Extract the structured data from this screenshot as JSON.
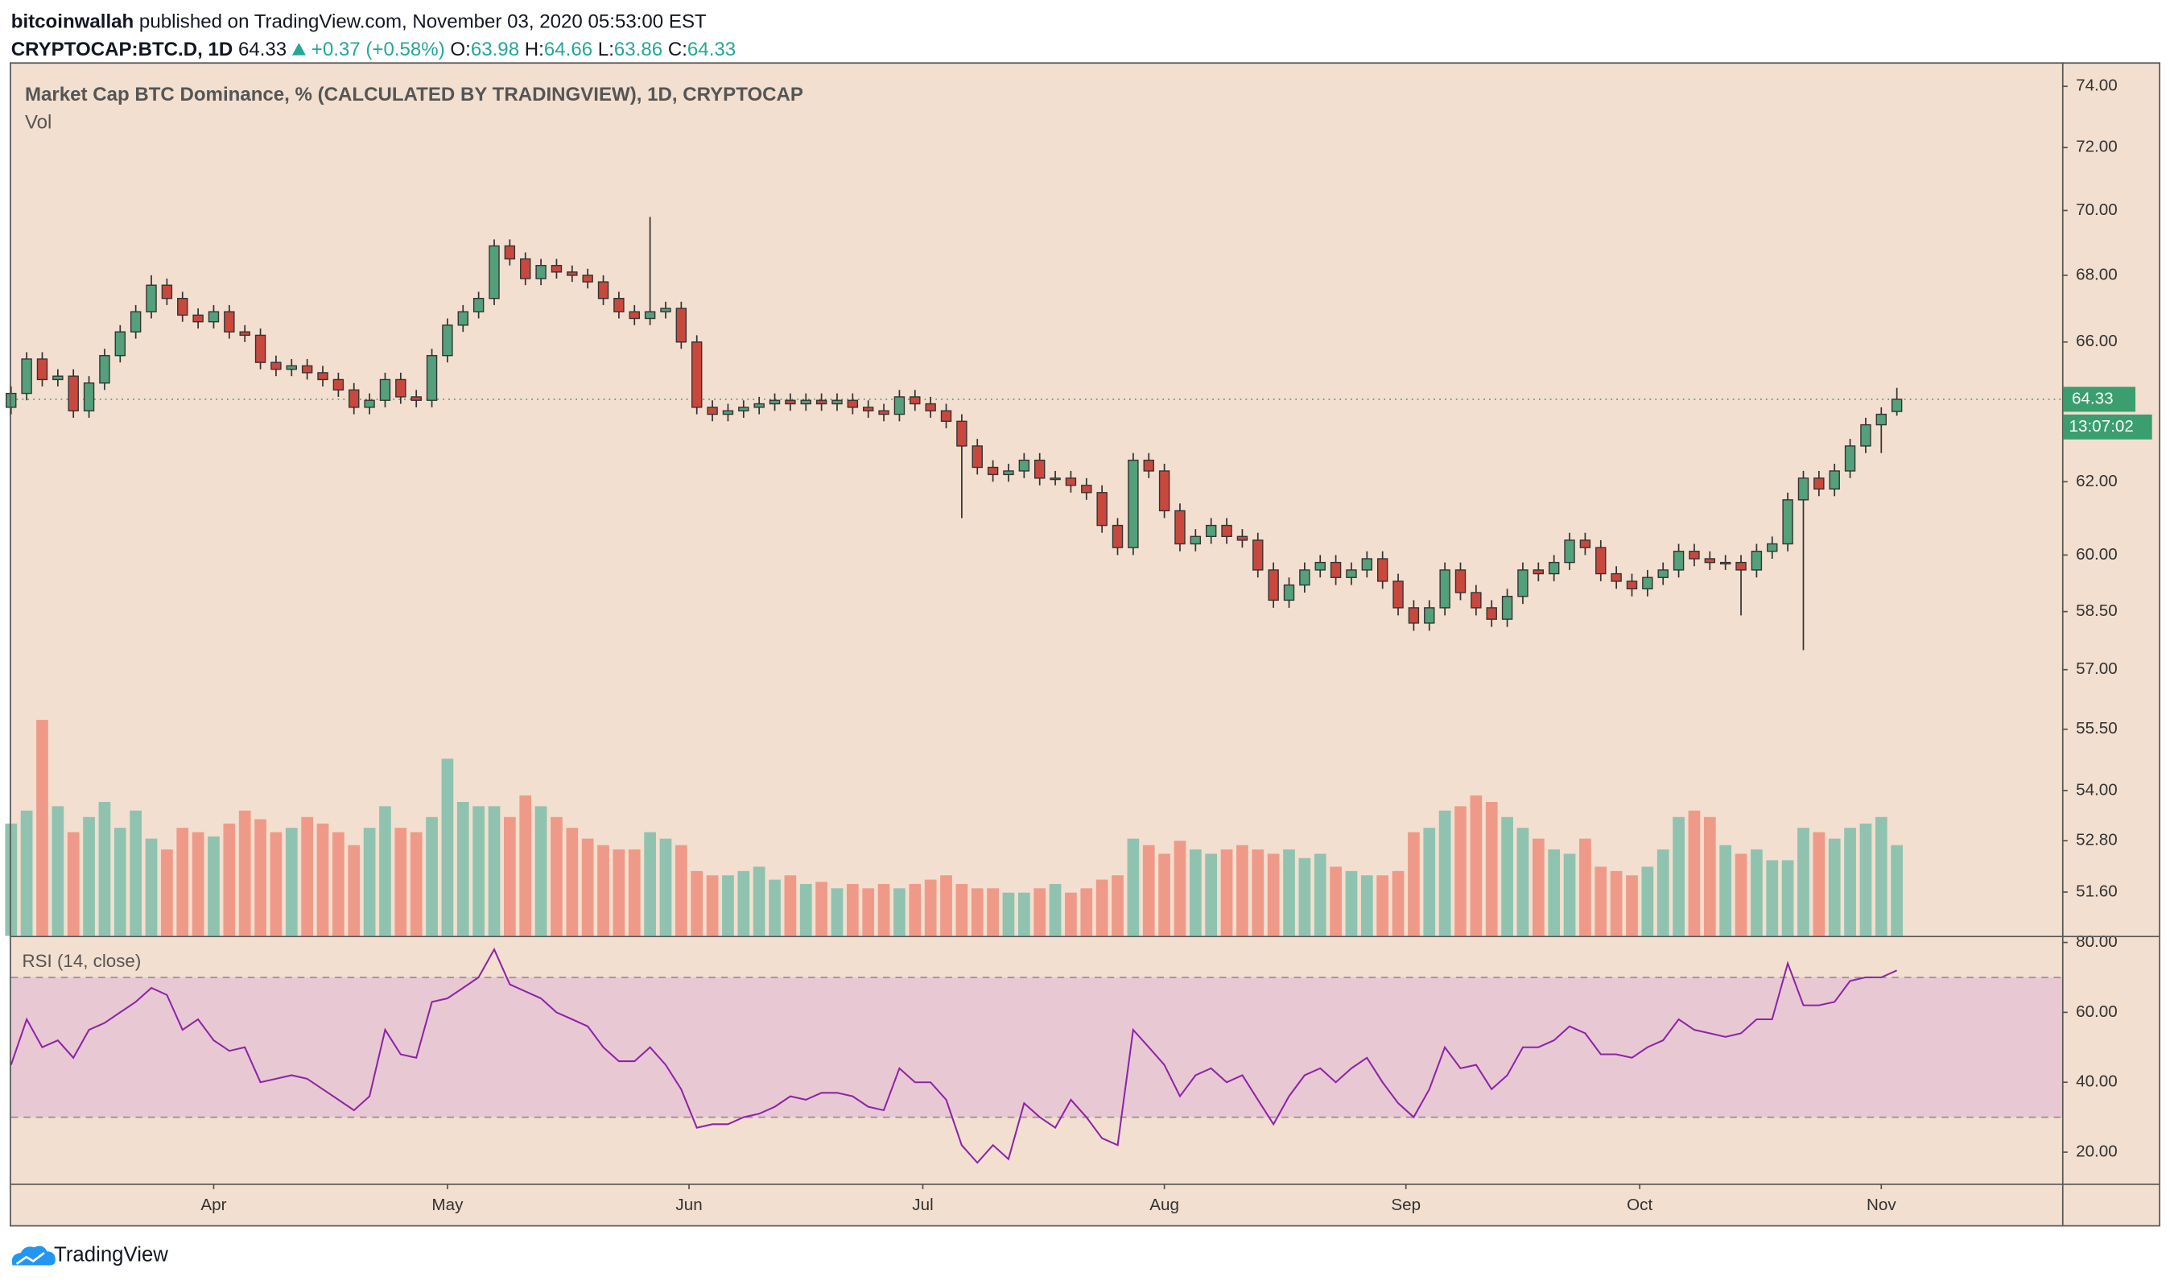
{
  "header": {
    "author": "bitcoinwallah",
    "published": "published on TradingView.com, November 03, 2020 05:53:00 EST",
    "symbol": "CRYPTOCAP:BTC.D, 1D",
    "change": "+0.37 (+0.58%)",
    "ohlc_labels": [
      "O:",
      "H:",
      "L:",
      "C:"
    ]
  },
  "footer": "TradingView",
  "chart_data": {
    "type": "candlestick",
    "title": "Market Cap BTC Dominance, % (CALCULATED BY TRADINGVIEW), 1D, CRYPTOCAP",
    "volume_title": "Vol",
    "rsi_title": "RSI (14, close)",
    "countdown": "13:07:02",
    "up_color": "#53a07a",
    "down_color": "#c9483e",
    "volume_up_color": "#8fc3b0",
    "volume_down_color": "#ef9a88",
    "rsi_color": "#8e24aa",
    "price_line_color": "#3a9e6f",
    "log_scale": true,
    "xlim": [
      0,
      131.6
    ],
    "xticks": [
      {
        "value": 13,
        "label": "Apr"
      },
      {
        "value": 28,
        "label": "May"
      },
      {
        "value": 43.5,
        "label": "Jun"
      },
      {
        "value": 58.5,
        "label": "Jul"
      },
      {
        "value": 74,
        "label": "Aug"
      },
      {
        "value": 89.5,
        "label": "Sep"
      },
      {
        "value": 104.5,
        "label": "Oct"
      },
      {
        "value": 120,
        "label": "Nov"
      }
    ],
    "ylim": [
      50.6,
      74.8
    ],
    "yticks": [
      {
        "value": 74,
        "label": "74.00"
      },
      {
        "value": 72,
        "label": "72.00"
      },
      {
        "value": 70,
        "label": "70.00"
      },
      {
        "value": 68,
        "label": "68.00"
      },
      {
        "value": 66,
        "label": "66.00"
      },
      {
        "value": 62,
        "label": "62.00"
      },
      {
        "value": 60,
        "label": "60.00"
      },
      {
        "value": 58.5,
        "label": "58.50"
      },
      {
        "value": 57,
        "label": "57.00"
      },
      {
        "value": 55.5,
        "label": "55.50"
      },
      {
        "value": 54,
        "label": "54.00"
      },
      {
        "value": 52.8,
        "label": "52.80"
      },
      {
        "value": 51.6,
        "label": "51.60"
      }
    ],
    "open": [
      64.1,
      64.5,
      65.5,
      64.9,
      65.0,
      64.0,
      64.8,
      65.6,
      66.3,
      66.9,
      67.7,
      67.3,
      66.8,
      66.6,
      66.9,
      66.3,
      66.2,
      65.4,
      65.2,
      65.3,
      65.1,
      64.9,
      64.6,
      64.1,
      64.3,
      64.9,
      64.4,
      64.3,
      65.6,
      66.5,
      66.9,
      67.3,
      68.9,
      68.5,
      67.9,
      68.3,
      68.1,
      68.0,
      67.8,
      67.3,
      66.9,
      66.7,
      66.9,
      67.0,
      66.0,
      64.1,
      63.9,
      64.0,
      64.1,
      64.2,
      64.3,
      64.2,
      64.3,
      64.2,
      64.3,
      64.1,
      64.0,
      63.9,
      64.4,
      64.2,
      64.0,
      63.7,
      63.0,
      62.4,
      62.2,
      62.3,
      62.6,
      62.1,
      62.1,
      61.9,
      61.7,
      60.8,
      60.2,
      62.6,
      62.3,
      61.2,
      60.3,
      60.5,
      60.8,
      60.5,
      60.4,
      59.6,
      58.8,
      59.2,
      59.6,
      59.8,
      59.4,
      59.6,
      59.9,
      59.3,
      58.6,
      58.2,
      58.6,
      59.6,
      59.0,
      58.6,
      58.3,
      58.9,
      59.6,
      59.5,
      59.8,
      60.4,
      60.2,
      59.5,
      59.3,
      59.1,
      59.4,
      59.6,
      60.1,
      59.9,
      59.8,
      59.8,
      59.6,
      60.1,
      60.3,
      61.5,
      62.1,
      61.8,
      62.3,
      63.0,
      63.6,
      63.98
    ],
    "high": [
      64.7,
      65.7,
      65.7,
      65.2,
      65.2,
      65.0,
      65.8,
      66.5,
      67.1,
      68.0,
      67.9,
      67.5,
      67.0,
      67.1,
      67.1,
      66.5,
      66.4,
      65.6,
      65.5,
      65.5,
      65.3,
      65.1,
      64.8,
      64.5,
      65.1,
      65.1,
      64.6,
      65.8,
      66.7,
      67.1,
      67.5,
      69.1,
      69.1,
      68.7,
      68.5,
      68.5,
      68.3,
      68.2,
      68.0,
      67.5,
      67.1,
      69.8,
      67.2,
      67.2,
      66.2,
      64.3,
      64.2,
      64.3,
      64.4,
      64.5,
      64.5,
      64.5,
      64.5,
      64.5,
      64.5,
      64.3,
      64.2,
      64.6,
      64.6,
      64.4,
      64.2,
      63.9,
      63.2,
      62.6,
      62.5,
      62.8,
      62.8,
      62.3,
      62.3,
      62.1,
      61.9,
      61.0,
      62.8,
      62.8,
      62.5,
      61.4,
      60.7,
      61.0,
      61.0,
      60.7,
      60.6,
      59.8,
      59.4,
      59.8,
      60.0,
      60.0,
      59.8,
      60.1,
      60.1,
      59.5,
      58.8,
      58.8,
      59.8,
      59.8,
      59.2,
      58.8,
      59.1,
      59.8,
      59.8,
      60.0,
      60.6,
      60.6,
      60.4,
      59.7,
      59.5,
      59.6,
      59.8,
      60.3,
      60.3,
      60.1,
      60.0,
      60.0,
      60.3,
      60.5,
      61.7,
      62.3,
      62.3,
      62.5,
      63.2,
      63.8,
      64.1,
      64.66
    ],
    "low": [
      63.9,
      64.3,
      64.7,
      64.7,
      63.8,
      63.8,
      64.6,
      65.4,
      66.1,
      66.7,
      67.1,
      66.6,
      66.4,
      66.4,
      66.1,
      66.0,
      65.2,
      65.0,
      65.0,
      64.9,
      64.7,
      64.4,
      63.9,
      63.9,
      64.1,
      64.2,
      64.1,
      64.1,
      65.4,
      66.3,
      66.7,
      67.1,
      68.3,
      67.7,
      67.7,
      67.9,
      67.8,
      67.6,
      67.1,
      66.7,
      66.5,
      66.5,
      66.7,
      65.8,
      63.9,
      63.7,
      63.7,
      63.8,
      63.9,
      64.0,
      64.0,
      64.0,
      64.0,
      64.0,
      63.9,
      63.8,
      63.7,
      63.7,
      64.0,
      63.8,
      63.5,
      61.0,
      62.2,
      62.0,
      62.0,
      62.1,
      61.9,
      61.9,
      61.7,
      61.5,
      60.6,
      60.0,
      60.0,
      62.1,
      61.0,
      60.1,
      60.1,
      60.3,
      60.3,
      60.2,
      59.4,
      58.6,
      58.6,
      59.0,
      59.4,
      59.2,
      59.2,
      59.4,
      59.1,
      58.4,
      58.0,
      58.0,
      58.4,
      58.8,
      58.4,
      58.1,
      58.1,
      58.7,
      59.3,
      59.3,
      59.6,
      60.0,
      59.3,
      59.1,
      58.9,
      58.9,
      59.2,
      59.4,
      59.7,
      59.6,
      59.6,
      58.4,
      59.4,
      59.9,
      60.1,
      57.5,
      61.6,
      61.6,
      62.1,
      62.8,
      62.8,
      63.86
    ],
    "close": [
      64.5,
      65.5,
      64.9,
      65.0,
      64.0,
      64.8,
      65.6,
      66.3,
      66.9,
      67.7,
      67.3,
      66.8,
      66.6,
      66.9,
      66.3,
      66.2,
      65.4,
      65.2,
      65.3,
      65.1,
      64.9,
      64.6,
      64.1,
      64.3,
      64.9,
      64.4,
      64.3,
      65.6,
      66.5,
      66.9,
      67.3,
      68.9,
      68.5,
      67.9,
      68.3,
      68.1,
      68.0,
      67.8,
      67.3,
      66.9,
      66.7,
      66.9,
      67.0,
      66.0,
      64.1,
      63.9,
      64.0,
      64.1,
      64.2,
      64.3,
      64.2,
      64.3,
      64.2,
      64.3,
      64.1,
      64.0,
      63.9,
      64.4,
      64.2,
      64.0,
      63.7,
      63.0,
      62.4,
      62.2,
      62.3,
      62.6,
      62.1,
      62.1,
      61.9,
      61.7,
      60.8,
      60.2,
      62.6,
      62.3,
      61.2,
      60.3,
      60.5,
      60.8,
      60.5,
      60.4,
      59.6,
      58.8,
      59.2,
      59.6,
      59.8,
      59.4,
      59.6,
      59.9,
      59.3,
      58.6,
      58.2,
      58.6,
      59.6,
      59.0,
      58.6,
      58.3,
      58.9,
      59.6,
      59.5,
      59.8,
      60.4,
      60.2,
      59.5,
      59.3,
      59.1,
      59.4,
      59.6,
      60.1,
      59.9,
      59.8,
      59.8,
      59.6,
      60.1,
      60.3,
      61.5,
      62.1,
      61.8,
      62.3,
      63.0,
      63.6,
      63.9,
      64.33
    ],
    "volume": [
      52,
      58,
      100,
      60,
      48,
      55,
      62,
      50,
      58,
      45,
      40,
      50,
      48,
      46,
      52,
      58,
      54,
      48,
      50,
      55,
      52,
      48,
      42,
      50,
      60,
      50,
      48,
      55,
      82,
      62,
      60,
      60,
      55,
      65,
      60,
      55,
      50,
      45,
      42,
      40,
      40,
      48,
      45,
      42,
      30,
      28,
      28,
      30,
      32,
      26,
      28,
      24,
      25,
      22,
      24,
      22,
      24,
      22,
      24,
      26,
      28,
      24,
      22,
      22,
      20,
      20,
      22,
      24,
      20,
      22,
      26,
      28,
      45,
      42,
      38,
      44,
      40,
      38,
      40,
      42,
      40,
      38,
      40,
      36,
      38,
      32,
      30,
      28,
      28,
      30,
      48,
      50,
      58,
      60,
      65,
      62,
      55,
      50,
      45,
      40,
      38,
      45,
      32,
      30,
      28,
      32,
      40,
      55,
      58,
      55,
      42,
      38,
      40,
      35,
      35,
      50,
      48,
      45,
      50,
      52,
      55,
      42
    ],
    "rsi": [
      45,
      58,
      50,
      52,
      47,
      55,
      57,
      60,
      63,
      67,
      65,
      55,
      58,
      52,
      49,
      50,
      40,
      41,
      42,
      41,
      38,
      35,
      32,
      36,
      55,
      48,
      47,
      63,
      64,
      67,
      70,
      78,
      68,
      66,
      64,
      60,
      58,
      56,
      50,
      46,
      46,
      50,
      45,
      38,
      27,
      28,
      28,
      30,
      31,
      33,
      36,
      35,
      37,
      37,
      36,
      33,
      32,
      44,
      40,
      40,
      35,
      22,
      17,
      22,
      18,
      34,
      30,
      27,
      35,
      30,
      24,
      22,
      55,
      50,
      45,
      36,
      42,
      44,
      40,
      42,
      35,
      28,
      36,
      42,
      44,
      40,
      44,
      47,
      40,
      34,
      30,
      38,
      50,
      44,
      45,
      38,
      42,
      50,
      50,
      52,
      56,
      54,
      48,
      48,
      47,
      50,
      52,
      58,
      55,
      54,
      53,
      54,
      58,
      58,
      74,
      62,
      62,
      63,
      69,
      70,
      70,
      72
    ],
    "rsi_band": [
      30,
      70
    ],
    "rsi_ylim": [
      11,
      81.5
    ],
    "rsi_yticks": [
      {
        "value": 80,
        "label": "80.00"
      },
      {
        "value": 60,
        "label": "60.00"
      },
      {
        "value": 40,
        "label": "40.00"
      },
      {
        "value": 20,
        "label": "20.00"
      }
    ]
  }
}
